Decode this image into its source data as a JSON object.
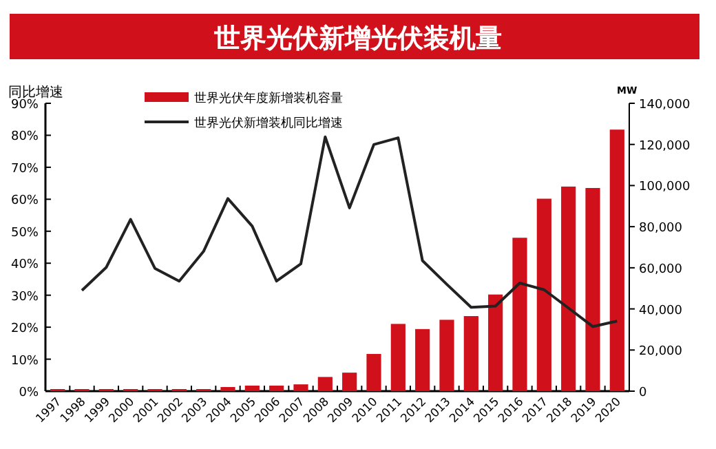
{
  "chart_data": {
    "type": "bar",
    "title": "世界光伏新增光伏装机量",
    "ylabel": "同比增速",
    "y2label": "MW",
    "categories": [
      "1997",
      "1998",
      "1999",
      "2000",
      "2001",
      "2002",
      "2003",
      "2004",
      "2005",
      "2006",
      "2007",
      "2008",
      "2009",
      "2010",
      "2011",
      "2012",
      "2013",
      "2014",
      "2015",
      "2016",
      "2017",
      "2018",
      "2019",
      "2020"
    ],
    "series": [
      {
        "name": "世界光伏年度新增装机容量",
        "axis": "y2",
        "color": "#d0101a",
        "values": [
          1000,
          1000,
          1000,
          1000,
          1000,
          1000,
          1000,
          2000,
          2700,
          2700,
          3300,
          6900,
          9000,
          18100,
          32700,
          30200,
          34700,
          36500,
          47000,
          74600,
          93600,
          99500,
          98800,
          127200
        ]
      },
      {
        "name": "世界光伏新增装机同比增速",
        "type": "line",
        "axis": "y",
        "color": "#222222",
        "values": [
          null,
          31.5,
          38.7,
          53.7,
          38.4,
          34.4,
          43.7,
          60.2,
          51.6,
          34.4,
          39.8,
          79.5,
          57.3,
          77.1,
          79.2,
          40.8,
          33.4,
          26.2,
          26.6,
          33.8,
          31.7,
          26,
          20.2,
          21.9
        ]
      }
    ],
    "ylim": [
      0,
      90
    ],
    "yticks": [
      {
        "value": 0,
        "label": "0%"
      },
      {
        "value": 10,
        "label": "10%"
      },
      {
        "value": 20,
        "label": "20%"
      },
      {
        "value": 30,
        "label": "30%"
      },
      {
        "value": 40,
        "label": "40%"
      },
      {
        "value": 50,
        "label": "50%"
      },
      {
        "value": 60,
        "label": "60%"
      },
      {
        "value": 70,
        "label": "70%"
      },
      {
        "value": 80,
        "label": "80%"
      },
      {
        "value": 90,
        "label": "90%"
      }
    ],
    "y2lim": [
      0,
      140000
    ],
    "y2ticks": [
      0,
      {
        "value": 20000,
        "label": "20,000"
      },
      {
        "value": 40000,
        "label": "40,000"
      },
      {
        "value": 60000,
        "label": "60,000"
      },
      {
        "value": 80000,
        "label": "80,000"
      },
      {
        "value": 100000,
        "label": "100,000"
      },
      {
        "value": 120000,
        "label": "120,000"
      },
      {
        "value": 140000,
        "label": "140,000"
      }
    ],
    "legend": "top left",
    "line_style": "solid",
    "grid": false
  }
}
